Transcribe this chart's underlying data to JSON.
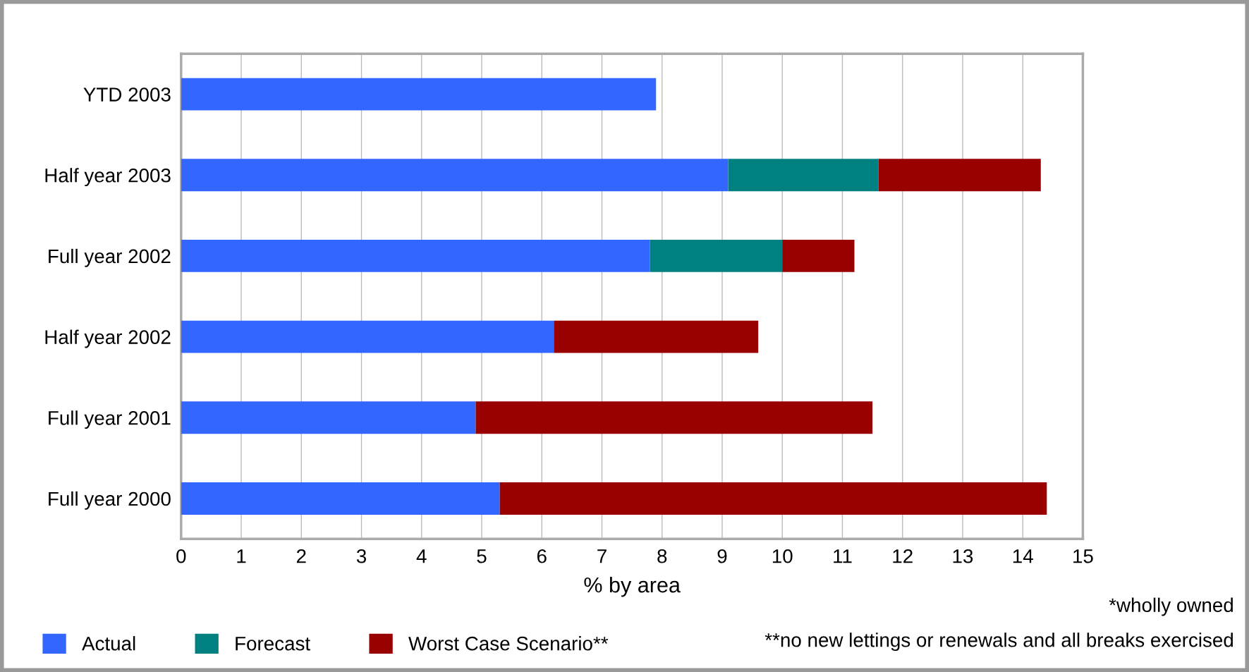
{
  "chart_data": {
    "type": "bar",
    "orientation": "horizontal",
    "stacked": true,
    "xlabel": "% by area",
    "categories": [
      "YTD 2003",
      "Half year 2003",
      "Full year 2002",
      "Half year 2002",
      "Full year 2001",
      "Full year 2000"
    ],
    "series": [
      {
        "name": "Actual",
        "color": "#3366ff",
        "values": [
          7.9,
          9.1,
          7.8,
          6.2,
          4.9,
          5.3
        ]
      },
      {
        "name": "Forecast",
        "color": "#008080",
        "values": [
          null,
          2.5,
          2.2,
          null,
          null,
          null
        ]
      },
      {
        "name": "Worst Case Scenario**",
        "color": "#990000",
        "values": [
          null,
          2.7,
          1.2,
          3.4,
          6.6,
          9.1
        ]
      }
    ],
    "xlim": [
      0,
      15
    ],
    "xticks": [
      0,
      1,
      2,
      3,
      4,
      5,
      6,
      7,
      8,
      9,
      10,
      11,
      12,
      13,
      14,
      15
    ],
    "grid": "x",
    "legend": "bottom",
    "annotations": [
      "*wholly owned",
      "**no new lettings or renewals and all breaks exercised"
    ]
  }
}
